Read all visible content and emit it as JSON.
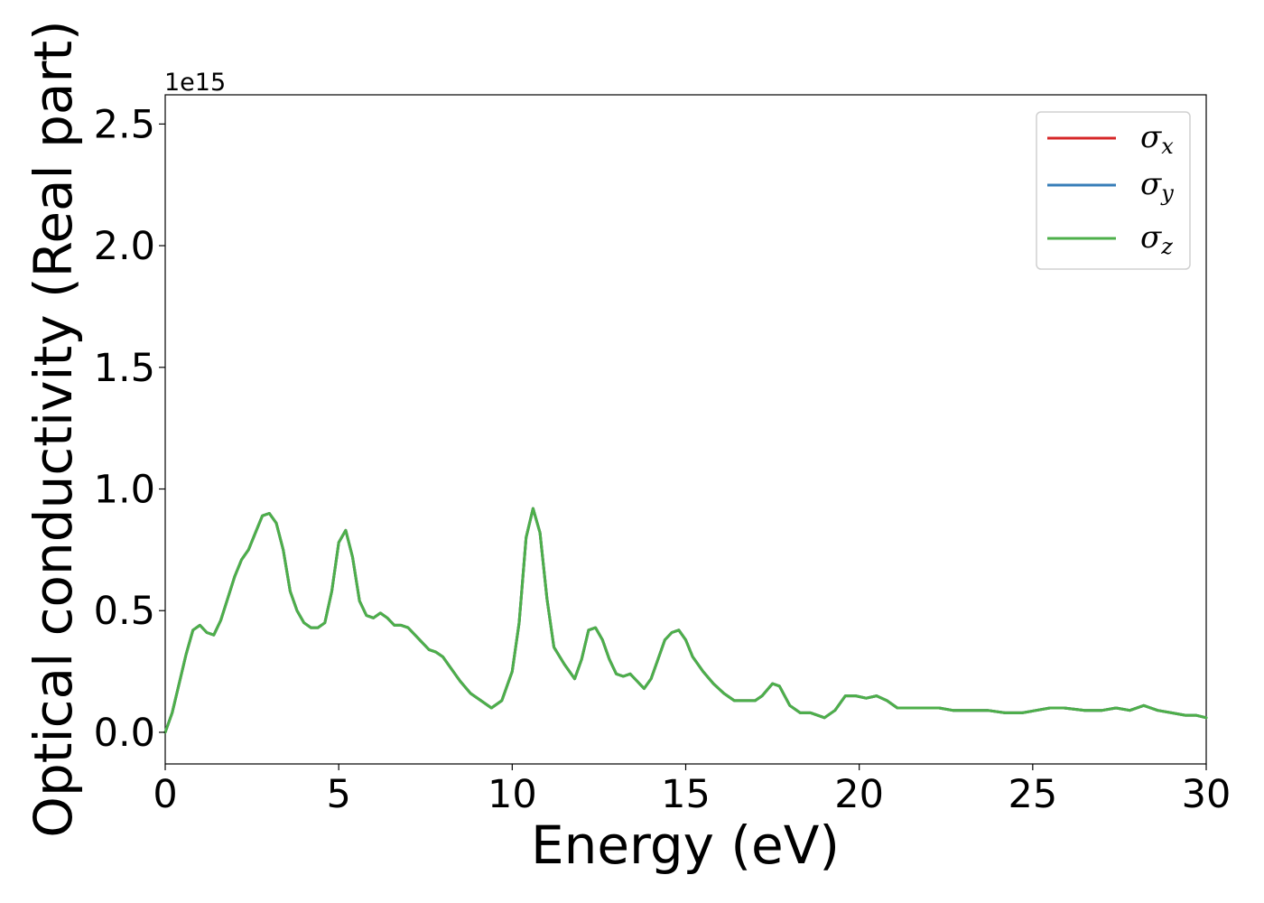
{
  "chart_data": {
    "type": "line",
    "xlabel": "Energy (eV)",
    "ylabel": "Optical conductivity (Real part)",
    "y_offset_text": "1e15",
    "xlim": [
      0,
      30
    ],
    "ylim": [
      -0.13,
      2.62
    ],
    "x_ticks": [
      0,
      5,
      10,
      15,
      20,
      25,
      30
    ],
    "x_tick_labels": [
      "0",
      "5",
      "10",
      "15",
      "20",
      "25",
      "30"
    ],
    "y_ticks": [
      0.0,
      0.5,
      1.0,
      1.5,
      2.0,
      2.5
    ],
    "y_tick_labels": [
      "0.0",
      "0.5",
      "1.0",
      "1.5",
      "2.0",
      "2.5"
    ],
    "y_scale_multiplier": 1000000000000000.0,
    "grid": false,
    "legend_position": "top-right",
    "x": [
      0.0,
      0.2,
      0.4,
      0.6,
      0.8,
      1.0,
      1.2,
      1.4,
      1.6,
      1.8,
      2.0,
      2.2,
      2.4,
      2.6,
      2.8,
      3.0,
      3.2,
      3.4,
      3.6,
      3.8,
      4.0,
      4.2,
      4.4,
      4.6,
      4.8,
      5.0,
      5.2,
      5.4,
      5.6,
      5.8,
      6.0,
      6.2,
      6.4,
      6.6,
      6.8,
      7.0,
      7.2,
      7.4,
      7.6,
      7.8,
      8.0,
      8.2,
      8.5,
      8.8,
      9.1,
      9.4,
      9.7,
      10.0,
      10.2,
      10.4,
      10.6,
      10.8,
      11.0,
      11.2,
      11.5,
      11.8,
      12.0,
      12.2,
      12.4,
      12.6,
      12.8,
      13.0,
      13.2,
      13.4,
      13.6,
      13.8,
      14.0,
      14.2,
      14.4,
      14.6,
      14.8,
      15.0,
      15.2,
      15.5,
      15.8,
      16.1,
      16.4,
      16.7,
      17.0,
      17.2,
      17.5,
      17.7,
      18.0,
      18.3,
      18.6,
      19.0,
      19.3,
      19.6,
      19.9,
      20.2,
      20.5,
      20.8,
      21.1,
      21.5,
      21.9,
      22.3,
      22.7,
      23.2,
      23.7,
      24.2,
      24.7,
      25.1,
      25.5,
      25.9,
      26.5,
      27.0,
      27.4,
      27.8,
      28.2,
      28.6,
      29.0,
      29.4,
      29.7,
      30.0
    ],
    "series": [
      {
        "name": "σx",
        "color": "#d62728",
        "values": [
          0.0,
          0.08,
          0.2,
          0.32,
          0.42,
          0.44,
          0.41,
          0.4,
          0.46,
          0.55,
          0.64,
          0.71,
          0.75,
          0.82,
          0.89,
          0.9,
          0.86,
          0.75,
          0.58,
          0.5,
          0.45,
          0.43,
          0.43,
          0.45,
          0.58,
          0.78,
          0.83,
          0.72,
          0.54,
          0.48,
          0.47,
          0.49,
          0.47,
          0.44,
          0.44,
          0.43,
          0.4,
          0.37,
          0.34,
          0.33,
          0.31,
          0.27,
          0.21,
          0.16,
          0.13,
          0.1,
          0.13,
          0.25,
          0.45,
          0.8,
          0.92,
          0.82,
          0.55,
          0.35,
          0.28,
          0.22,
          0.3,
          0.42,
          0.43,
          0.38,
          0.3,
          0.24,
          0.23,
          0.24,
          0.21,
          0.18,
          0.22,
          0.3,
          0.38,
          0.41,
          0.42,
          0.38,
          0.31,
          0.25,
          0.2,
          0.16,
          0.13,
          0.13,
          0.13,
          0.15,
          0.2,
          0.19,
          0.11,
          0.08,
          0.08,
          0.06,
          0.09,
          0.15,
          0.15,
          0.14,
          0.15,
          0.13,
          0.1,
          0.1,
          0.1,
          0.1,
          0.09,
          0.09,
          0.09,
          0.08,
          0.08,
          0.09,
          0.1,
          0.1,
          0.09,
          0.09,
          0.1,
          0.09,
          0.11,
          0.09,
          0.08,
          0.07,
          0.07,
          0.06
        ]
      },
      {
        "name": "σy",
        "color": "#377eb8",
        "values": [
          0.0,
          0.08,
          0.2,
          0.32,
          0.42,
          0.44,
          0.41,
          0.4,
          0.46,
          0.55,
          0.64,
          0.71,
          0.75,
          0.82,
          0.89,
          0.9,
          0.86,
          0.75,
          0.58,
          0.5,
          0.45,
          0.43,
          0.43,
          0.45,
          0.58,
          0.78,
          0.83,
          0.72,
          0.54,
          0.48,
          0.47,
          0.49,
          0.47,
          0.44,
          0.44,
          0.43,
          0.4,
          0.37,
          0.34,
          0.33,
          0.31,
          0.27,
          0.21,
          0.16,
          0.13,
          0.1,
          0.13,
          0.25,
          0.45,
          0.8,
          0.92,
          0.82,
          0.55,
          0.35,
          0.28,
          0.22,
          0.3,
          0.42,
          0.43,
          0.38,
          0.3,
          0.24,
          0.23,
          0.24,
          0.21,
          0.18,
          0.22,
          0.3,
          0.38,
          0.41,
          0.42,
          0.38,
          0.31,
          0.25,
          0.2,
          0.16,
          0.13,
          0.13,
          0.13,
          0.15,
          0.2,
          0.19,
          0.11,
          0.08,
          0.08,
          0.06,
          0.09,
          0.15,
          0.15,
          0.14,
          0.15,
          0.13,
          0.1,
          0.1,
          0.1,
          0.1,
          0.09,
          0.09,
          0.09,
          0.08,
          0.08,
          0.09,
          0.1,
          0.1,
          0.09,
          0.09,
          0.1,
          0.09,
          0.11,
          0.09,
          0.08,
          0.07,
          0.07,
          0.06
        ]
      },
      {
        "name": "σz",
        "color": "#4daf4a",
        "values": [
          0.0,
          0.08,
          0.2,
          0.32,
          0.42,
          0.44,
          0.41,
          0.4,
          0.46,
          0.55,
          0.64,
          0.71,
          0.75,
          0.82,
          0.89,
          0.9,
          0.86,
          0.75,
          0.58,
          0.5,
          0.45,
          0.43,
          0.43,
          0.45,
          0.58,
          0.78,
          0.83,
          0.72,
          0.54,
          0.48,
          0.47,
          0.49,
          0.47,
          0.44,
          0.44,
          0.43,
          0.4,
          0.37,
          0.34,
          0.33,
          0.31,
          0.27,
          0.21,
          0.16,
          0.13,
          0.1,
          0.13,
          0.25,
          0.45,
          0.8,
          0.92,
          0.82,
          0.55,
          0.35,
          0.28,
          0.22,
          0.3,
          0.42,
          0.43,
          0.38,
          0.3,
          0.24,
          0.23,
          0.24,
          0.21,
          0.18,
          0.22,
          0.3,
          0.38,
          0.41,
          0.42,
          0.38,
          0.31,
          0.25,
          0.2,
          0.16,
          0.13,
          0.13,
          0.13,
          0.15,
          0.2,
          0.19,
          0.11,
          0.08,
          0.08,
          0.06,
          0.09,
          0.15,
          0.15,
          0.14,
          0.15,
          0.13,
          0.1,
          0.1,
          0.1,
          0.1,
          0.09,
          0.09,
          0.09,
          0.08,
          0.08,
          0.09,
          0.1,
          0.1,
          0.09,
          0.09,
          0.1,
          0.09,
          0.11,
          0.09,
          0.08,
          0.07,
          0.07,
          0.06
        ]
      }
    ],
    "legend": [
      {
        "symbol": "σ",
        "sub": "x",
        "color": "#d62728"
      },
      {
        "symbol": "σ",
        "sub": "y",
        "color": "#377eb8"
      },
      {
        "symbol": "σ",
        "sub": "z",
        "color": "#4daf4a"
      }
    ]
  }
}
